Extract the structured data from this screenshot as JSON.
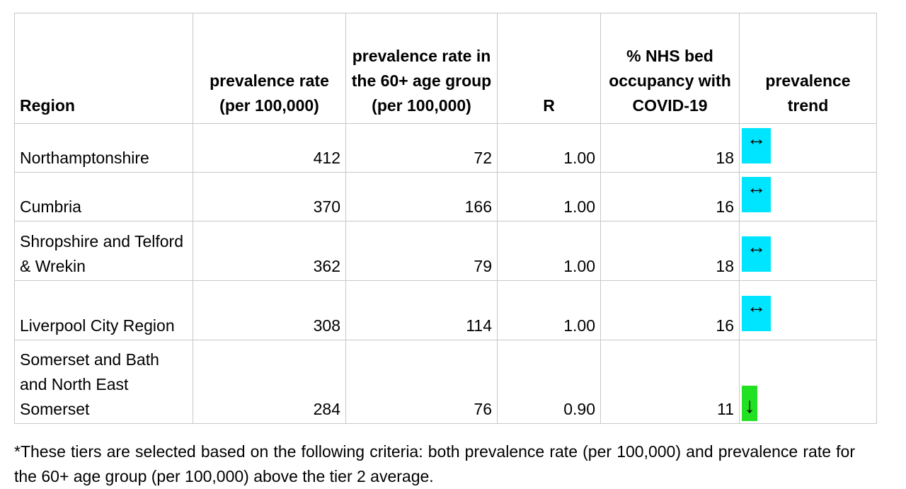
{
  "table": {
    "headers": {
      "region": "Region",
      "prevalence_rate": "prevalence rate (per 100,000)",
      "prevalence_60_plus": "prevalence rate in the 60+ age group (per 100,000)",
      "r": "R",
      "nhs_bed_occupancy": "% NHS  bed occupancy with COVID-19",
      "trend": "prevalence trend"
    },
    "rows": [
      {
        "region": "Northamptonshire",
        "prevalence_rate": "412",
        "prevalence_60_plus": "72",
        "r": "1.00",
        "nhs_bed_occupancy": "18",
        "trend": "↔",
        "trend_color": "#00e5ff"
      },
      {
        "region": "Cumbria",
        "prevalence_rate": "370",
        "prevalence_60_plus": "166",
        "r": "1.00",
        "nhs_bed_occupancy": "16",
        "trend": "↔",
        "trend_color": "#00e5ff"
      },
      {
        "region": "Shropshire and Telford & Wrekin",
        "prevalence_rate": "362",
        "prevalence_60_plus": "79",
        "r": "1.00",
        "nhs_bed_occupancy": "18",
        "trend": "↔",
        "trend_color": "#00e5ff"
      },
      {
        "region": "Liverpool City Region",
        "prevalence_rate": "308",
        "prevalence_60_plus": "114",
        "r": "1.00",
        "nhs_bed_occupancy": "16",
        "trend": "↔",
        "trend_color": "#00e5ff"
      },
      {
        "region": "Somerset and Bath and North East Somerset",
        "prevalence_rate": "284",
        "prevalence_60_plus": "76",
        "r": "0.90",
        "nhs_bed_occupancy": "11",
        "trend": "↓",
        "trend_color": "#22e022"
      }
    ]
  },
  "footnote": "*These tiers are selected based on the following criteria: both prevalence rate (per 100,000) and prevalence rate for the 60+ age group (per 100,000) above the tier 2 average."
}
